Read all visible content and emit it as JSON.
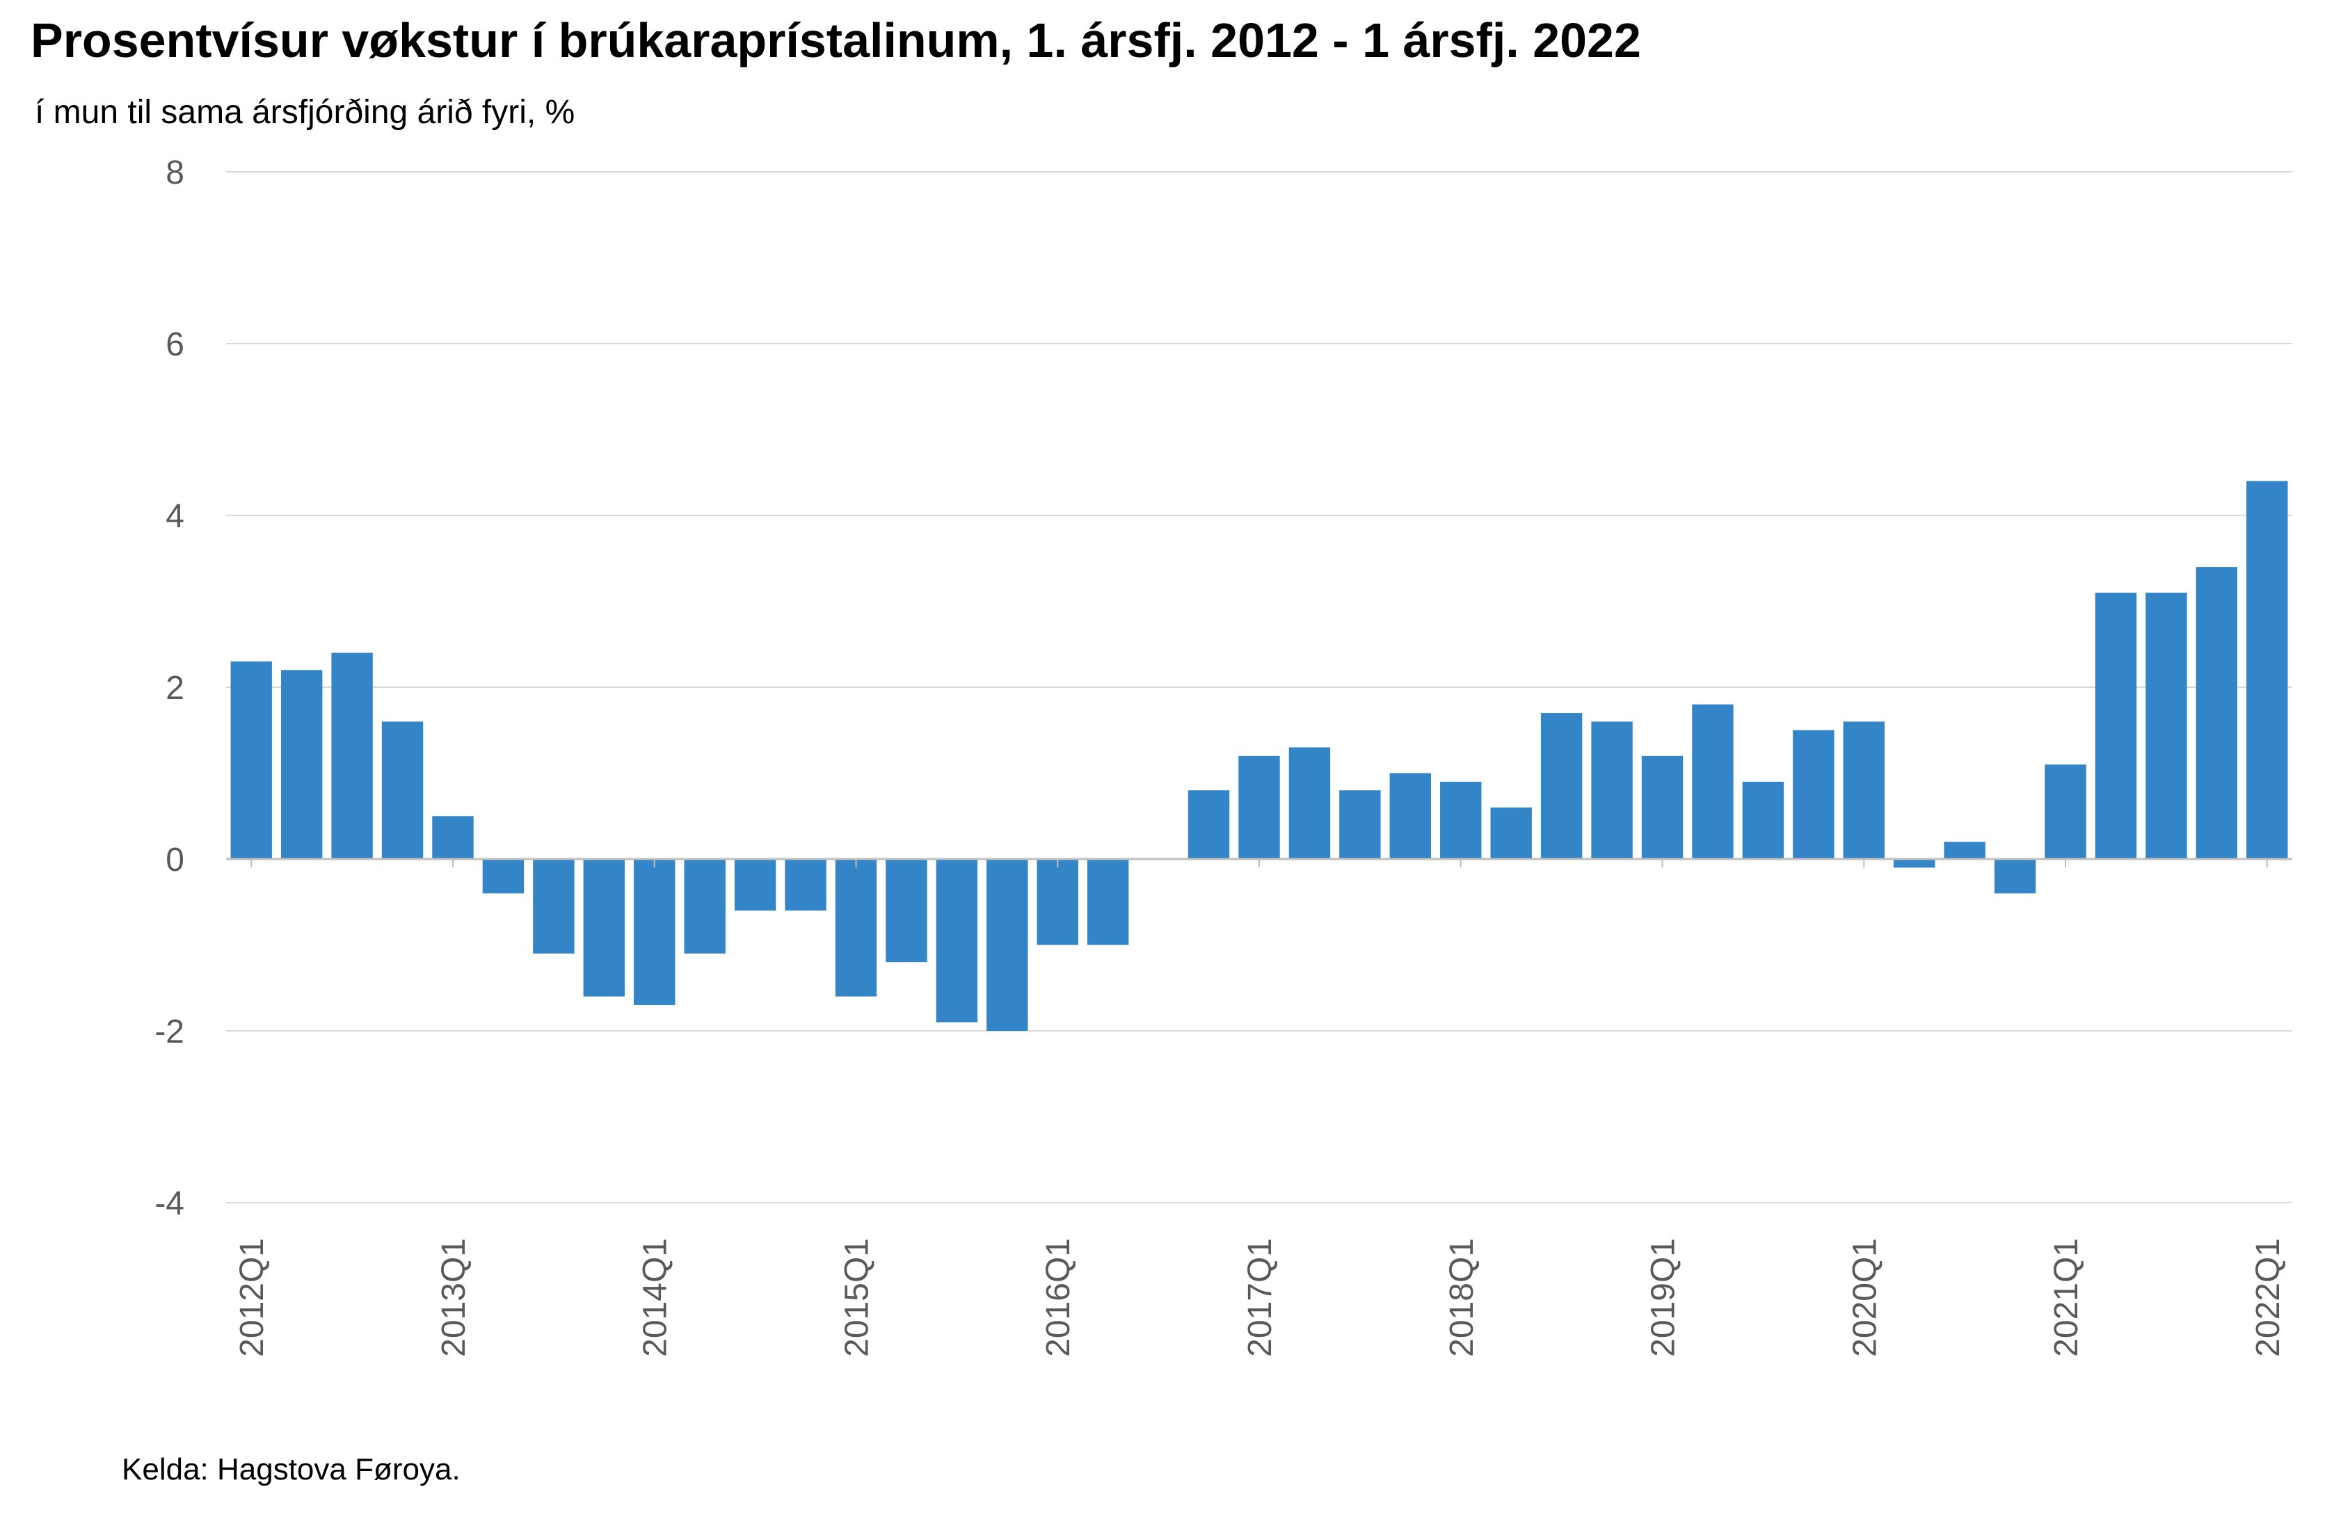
{
  "title": "Prosentvísur vøkstur í brúkaraprístalinum, 1. ársfj. 2012 - 1 ársfj. 2022",
  "subtitle": "í mun til sama ársfjórðing árið fyri, %",
  "source": "Kelda: Hagstova Føroya.",
  "colors": {
    "bar": "#3485c8",
    "grid": "#d9d9d9",
    "axis": "#bfbfbf",
    "tick_text": "#595959"
  },
  "chart_data": {
    "type": "bar",
    "title": "Prosentvísur vøkstur í brúkaraprístalinum, 1. ársfj. 2012 - 1 ársfj. 2022",
    "subtitle": "í mun til sama ársfjórðing árið fyri, %",
    "xlabel": "",
    "ylabel": "",
    "ylim": [
      -4,
      8
    ],
    "yticks": [
      -4,
      -2,
      0,
      2,
      4,
      6,
      8
    ],
    "grid": true,
    "legend": "none",
    "categories": [
      "2012Q1",
      "2012Q2",
      "2012Q3",
      "2012Q4",
      "2013Q1",
      "2013Q2",
      "2013Q3",
      "2013Q4",
      "2014Q1",
      "2014Q2",
      "2014Q3",
      "2014Q4",
      "2015Q1",
      "2015Q2",
      "2015Q3",
      "2015Q4",
      "2016Q1",
      "2016Q2",
      "2016Q3",
      "2016Q4",
      "2017Q1",
      "2017Q2",
      "2017Q3",
      "2017Q4",
      "2018Q1",
      "2018Q2",
      "2018Q3",
      "2018Q4",
      "2019Q1",
      "2019Q2",
      "2019Q3",
      "2019Q4",
      "2020Q1",
      "2020Q2",
      "2020Q3",
      "2020Q4",
      "2021Q1",
      "2021Q2",
      "2021Q3",
      "2021Q4",
      "2022Q1"
    ],
    "x_tick_labels": [
      "2012Q1",
      "2013Q1",
      "2014Q1",
      "2015Q1",
      "2016Q1",
      "2017Q1",
      "2018Q1",
      "2019Q1",
      "2020Q1",
      "2021Q1",
      "2022Q1"
    ],
    "values": [
      2.3,
      2.2,
      2.4,
      1.6,
      0.5,
      -0.4,
      -1.1,
      -1.6,
      -1.7,
      -1.1,
      -0.6,
      -0.6,
      -1.6,
      -1.2,
      -1.9,
      -2.0,
      -1.0,
      -1.0,
      0.0,
      0.8,
      1.2,
      1.3,
      0.8,
      1.0,
      0.9,
      0.6,
      1.7,
      1.6,
      1.2,
      1.8,
      0.9,
      1.5,
      1.6,
      -0.1,
      0.2,
      -0.4,
      1.1,
      3.1,
      3.1,
      3.4,
      4.4
    ]
  }
}
